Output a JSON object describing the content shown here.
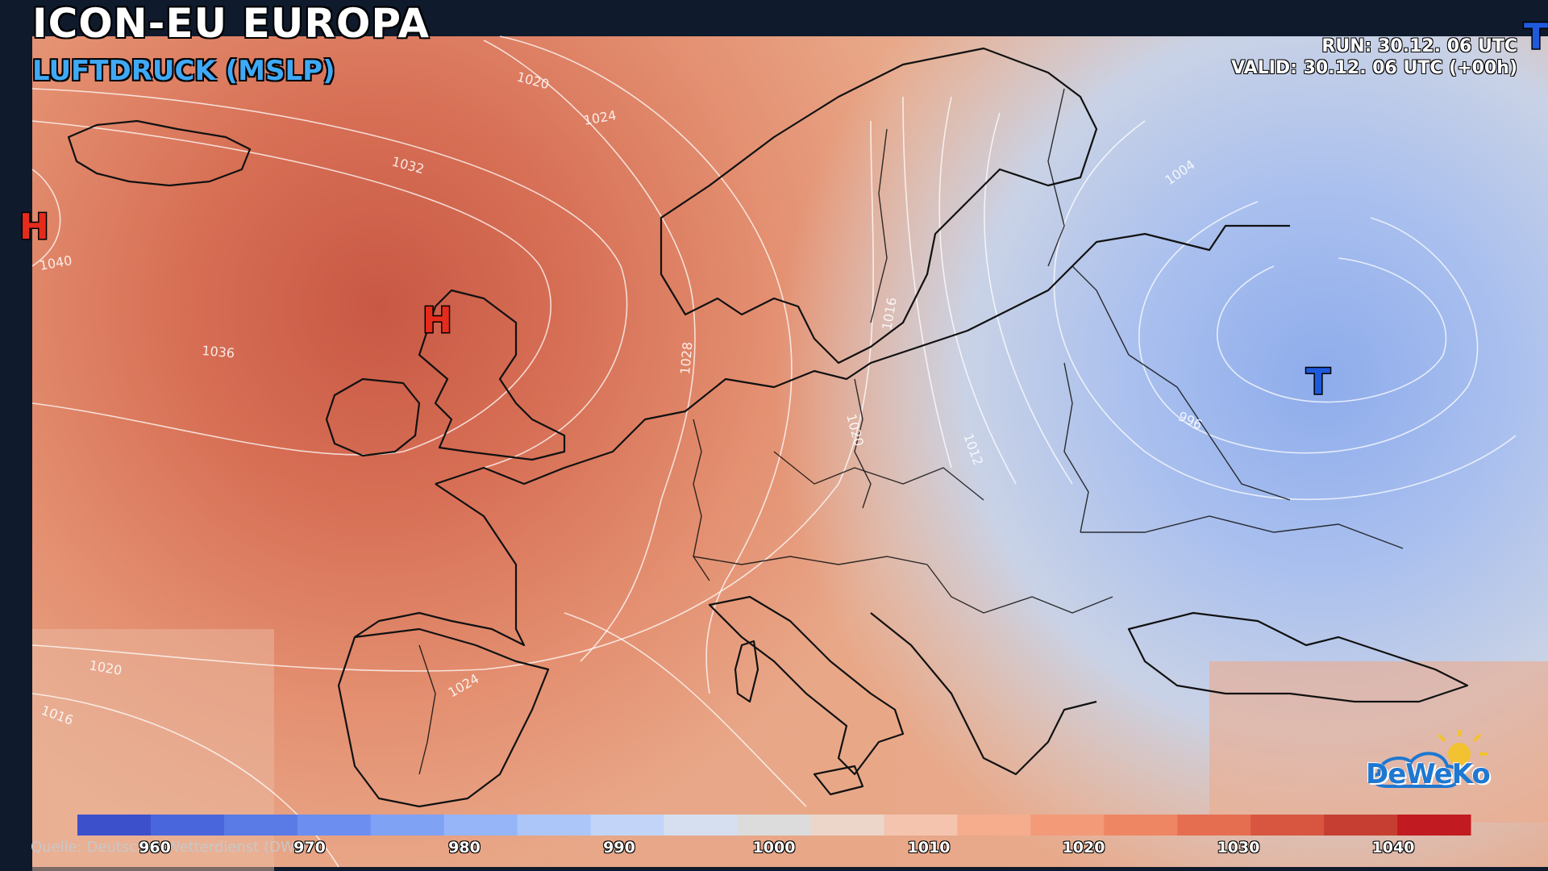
{
  "header": {
    "title": "ICON-EU EUROPA",
    "subtitle": "LUFTDRUCK (MSLP)",
    "run": "RUN: 30.12. 06 UTC",
    "valid": "VALID: 30.12. 06 UTC (+00h)"
  },
  "map": {
    "pressure_centers": [
      {
        "label": "H",
        "type": "high"
      },
      {
        "label": "H",
        "type": "high"
      },
      {
        "label": "T",
        "type": "low"
      },
      {
        "label": "T",
        "type": "low"
      }
    ],
    "isobar_labels": [
      "1020",
      "1024",
      "1032",
      "1040",
      "1036",
      "1028",
      "1016",
      "1020",
      "1024",
      "1012",
      "1016",
      "1004",
      "996",
      "1020"
    ]
  },
  "legend": {
    "unit_min": 955,
    "unit_max": 1045,
    "ticks": [
      "960",
      "970",
      "980",
      "990",
      "1000",
      "1010",
      "1020",
      "1030",
      "1040"
    ],
    "colors": [
      "#3c50cc",
      "#4a66dc",
      "#5a7ae6",
      "#6c8ef0",
      "#80a2f5",
      "#96b5f8",
      "#acc6fa",
      "#c2d5f8",
      "#d5dff0",
      "#dcdcdc",
      "#ecd6ca",
      "#f4c4ae",
      "#f5ad8e",
      "#f39a78",
      "#ee8664",
      "#e66e50",
      "#d85640",
      "#c63e32",
      "#c11a20"
    ]
  },
  "source": "Quelle: Deutscher Wetterdienst (DWD)",
  "logo": {
    "text": "DeWeKo"
  }
}
